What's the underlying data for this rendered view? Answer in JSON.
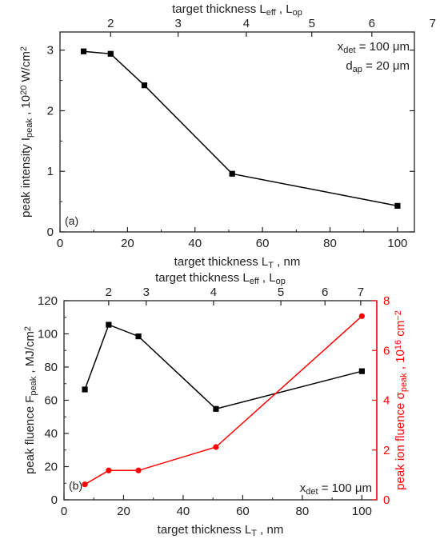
{
  "colors": {
    "axis": "#222222",
    "series_black": "#000000",
    "series_red": "#ff0000"
  },
  "chart_data": [
    {
      "type": "line",
      "panel_label": "(a)",
      "xlabel": "target thickness L_T , nm",
      "xlabel_parts": {
        "main": "target thickness L",
        "sub": "T",
        "tail": " , nm"
      },
      "ylabel_parts": {
        "a": "peak intensity I",
        "sub": "peak",
        "b": " , 10",
        "sup": "20",
        "c": " W/cm",
        "sup2": "2"
      },
      "top_xlabel_parts": {
        "a": "target thickness L",
        "sub1": "eff",
        "b": " , L",
        "sub2": "op"
      },
      "xlim": [
        0,
        105
      ],
      "ylim": [
        0,
        3.3
      ],
      "x_ticks": [
        0,
        20,
        40,
        60,
        80,
        100
      ],
      "y_ticks": [
        0,
        1,
        2,
        3
      ],
      "top_ticks": [
        {
          "label": "2",
          "x": 15.0
        },
        {
          "label": "3",
          "x": 35.0
        },
        {
          "label": "4",
          "x": 55.2
        },
        {
          "label": "5",
          "x": 74.6
        },
        {
          "label": "6",
          "x": 92.4
        },
        {
          "label": "7",
          "x": 110.4
        }
      ],
      "annotations": [
        {
          "main": "x",
          "sub": "det",
          "tail": " = 100 μm"
        },
        {
          "main": "d",
          "sub": "ap",
          "tail": " = 20 μm"
        }
      ],
      "series": [
        {
          "x": [
            7,
            15,
            25,
            51,
            100
          ],
          "y": [
            2.98,
            2.94,
            2.42,
            0.96,
            0.43
          ],
          "color": "#000000",
          "axis": "left"
        }
      ]
    },
    {
      "type": "line",
      "panel_label": "",
      "panel_tag": "(b)",
      "xlabel": "target thickness L_T , nm",
      "xlabel_parts": {
        "main": "target thickness L",
        "sub": "T",
        "tail": " , nm"
      },
      "ylabel_parts": {
        "a": "peak fluence F",
        "sub": "peak",
        "b": " , MJ/cm",
        "sup": "2"
      },
      "right_ylabel_parts": {
        "a": "peak ion fluence σ",
        "sub": "peak",
        "b": " , 10",
        "sup": "16",
        "c": " cm",
        "sup2": "−2"
      },
      "top_xlabel_parts": {
        "a": "target thickness L",
        "sub1": "eff",
        "b": " , L",
        "sub2": "op"
      },
      "xlim": [
        0,
        105
      ],
      "ylim": [
        0,
        120
      ],
      "y2lim": [
        0,
        8
      ],
      "x_ticks": [
        0,
        20,
        40,
        60,
        80,
        100
      ],
      "y_ticks": [
        0,
        20,
        40,
        60,
        80,
        100,
        120
      ],
      "y2_ticks": [
        0,
        2,
        4,
        6,
        8
      ],
      "top_ticks": [
        {
          "label": "2",
          "x": 15.0
        },
        {
          "label": "3",
          "x": 27.6
        },
        {
          "label": "4",
          "x": 50.2
        },
        {
          "label": "5",
          "x": 72.8
        },
        {
          "label": "6",
          "x": 87.6
        },
        {
          "label": "7",
          "x": 99.6
        }
      ],
      "annotations": [
        {
          "main": "x",
          "sub": "det",
          "tail": " = 100 μm"
        }
      ],
      "series": [
        {
          "x": [
            7,
            15,
            25,
            51,
            100
          ],
          "y": [
            66.5,
            105.5,
            98.5,
            54.8,
            77.5
          ],
          "color": "#000000",
          "axis": "left"
        },
        {
          "x": [
            7,
            15,
            25,
            51,
            100
          ],
          "y": [
            0.62,
            1.18,
            1.18,
            2.12,
            7.38
          ],
          "color": "#ff0000",
          "axis": "right"
        }
      ]
    }
  ]
}
